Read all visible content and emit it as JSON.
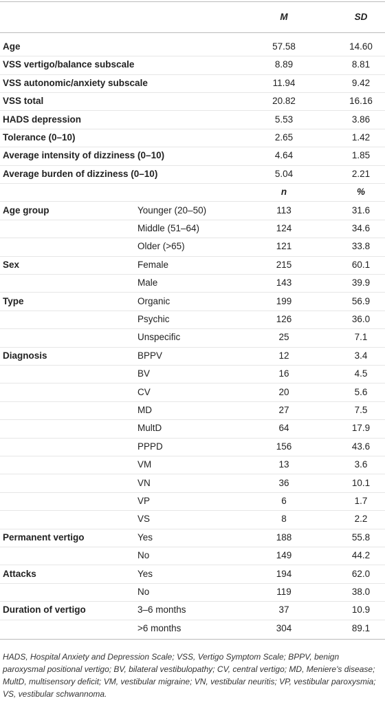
{
  "table": {
    "sections": [
      {
        "header": [
          "M",
          "SD"
        ],
        "rows": [
          {
            "label": "Age",
            "cells": [
              "57.58",
              "14.60"
            ]
          },
          {
            "label": "VSS vertigo/balance subscale",
            "cells": [
              "8.89",
              "8.81"
            ]
          },
          {
            "label": "VSS autonomic/anxiety subscale",
            "cells": [
              "11.94",
              "9.42"
            ]
          },
          {
            "label": "VSS total",
            "cells": [
              "20.82",
              "16.16"
            ]
          },
          {
            "label": "HADS depression",
            "cells": [
              "5.53",
              "3.86"
            ]
          },
          {
            "label": "Tolerance (0–10)",
            "cells": [
              "2.65",
              "1.42"
            ]
          },
          {
            "label": "Average intensity of dizziness (0–10)",
            "cells": [
              "4.64",
              "1.85"
            ]
          },
          {
            "label": "Average burden of dizziness (0–10)",
            "cells": [
              "5.04",
              "2.21"
            ]
          }
        ]
      },
      {
        "header": [
          "n",
          "%"
        ],
        "rows": [
          {
            "label": "Age group",
            "category": "Younger (20–50)",
            "cells": [
              "113",
              "31.6"
            ]
          },
          {
            "category": "Middle (51–64)",
            "cells": [
              "124",
              "34.6"
            ]
          },
          {
            "category": "Older (>65)",
            "cells": [
              "121",
              "33.8"
            ]
          },
          {
            "label": "Sex",
            "category": "Female",
            "cells": [
              "215",
              "60.1"
            ]
          },
          {
            "category": "Male",
            "cells": [
              "143",
              "39.9"
            ]
          },
          {
            "label": "Type",
            "category": "Organic",
            "cells": [
              "199",
              "56.9"
            ]
          },
          {
            "category": "Psychic",
            "cells": [
              "126",
              "36.0"
            ]
          },
          {
            "category": "Unspecific",
            "cells": [
              "25",
              "7.1"
            ]
          },
          {
            "label": "Diagnosis",
            "category": "BPPV",
            "cells": [
              "12",
              "3.4"
            ]
          },
          {
            "category": "BV",
            "cells": [
              "16",
              "4.5"
            ]
          },
          {
            "category": "CV",
            "cells": [
              "20",
              "5.6"
            ]
          },
          {
            "category": "MD",
            "cells": [
              "27",
              "7.5"
            ]
          },
          {
            "category": "MultD",
            "cells": [
              "64",
              "17.9"
            ]
          },
          {
            "category": "PPPD",
            "cells": [
              "156",
              "43.6"
            ]
          },
          {
            "category": "VM",
            "cells": [
              "13",
              "3.6"
            ]
          },
          {
            "category": "VN",
            "cells": [
              "36",
              "10.1"
            ]
          },
          {
            "category": "VP",
            "cells": [
              "6",
              "1.7"
            ]
          },
          {
            "category": "VS",
            "cells": [
              "8",
              "2.2"
            ]
          },
          {
            "label": "Permanent vertigo",
            "category": "Yes",
            "cells": [
              "188",
              "55.8"
            ]
          },
          {
            "category": "No",
            "cells": [
              "149",
              "44.2"
            ]
          },
          {
            "label": "Attacks",
            "category": "Yes",
            "cells": [
              "194",
              "62.0"
            ]
          },
          {
            "category": "No",
            "cells": [
              "119",
              "38.0"
            ]
          },
          {
            "label": "Duration of vertigo",
            "category": "3–6 months",
            "cells": [
              "37",
              "10.9"
            ]
          },
          {
            "category": ">6 months",
            "cells": [
              "304",
              "89.1"
            ]
          }
        ]
      }
    ],
    "note": "HADS, Hospital Anxiety and Depression Scale; VSS, Vertigo Symptom Scale; BPPV, benign paroxysmal positional vertigo; BV, bilateral vestibulopathy; CV, central vertigo; MD, Meniere's disease; MultD, multisensory deficit; VM, vestibular migraine; VN, vestibular neuritis; VP, vestibular paroxysmia; VS, vestibular schwannoma."
  }
}
